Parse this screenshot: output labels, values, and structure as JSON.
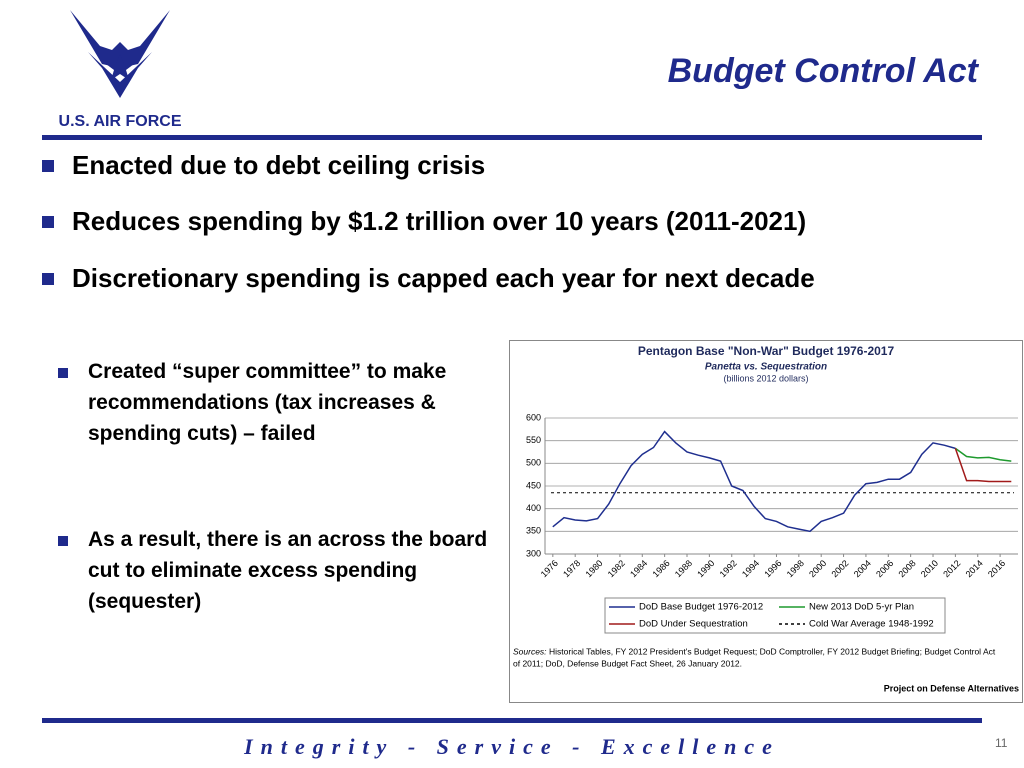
{
  "header": {
    "logo_text": "U.S. AIR FORCE",
    "title": "Budget Control Act"
  },
  "bullets": [
    "Enacted due to debt ceiling crisis",
    "Reduces spending by $1.2 trillion over 10 years (2011-2021)",
    "Discretionary spending is capped each year for next decade"
  ],
  "sub_bullets": [
    "Created “super committee” to make recommendations (tax increases & spending cuts) – failed",
    "As a result, there is an across the board cut to eliminate excess spending (sequester)"
  ],
  "chart_data": {
    "type": "line",
    "title": "Pentagon Base \"Non-War\" Budget 1976-2017",
    "subtitle": "Panetta vs. Sequestration",
    "y_label": "(billions 2012 dollars)",
    "x": [
      1976,
      1977,
      1978,
      1979,
      1980,
      1981,
      1982,
      1983,
      1984,
      1985,
      1986,
      1987,
      1988,
      1989,
      1990,
      1991,
      1992,
      1993,
      1994,
      1995,
      1996,
      1997,
      1998,
      1999,
      2000,
      2001,
      2002,
      2003,
      2004,
      2005,
      2006,
      2007,
      2008,
      2009,
      2010,
      2011,
      2012,
      2013,
      2014,
      2015,
      2016,
      2017
    ],
    "series": [
      {
        "name": "DoD Base Budget 1976-2012",
        "color": "#1f2f8f",
        "values": [
          360,
          380,
          375,
          373,
          378,
          410,
          455,
          495,
          520,
          535,
          570,
          545,
          525,
          518,
          512,
          505,
          450,
          440,
          405,
          378,
          372,
          360,
          355,
          350,
          372,
          380,
          390,
          430,
          455,
          458,
          465,
          465,
          480,
          520,
          545,
          540,
          533,
          null,
          null,
          null,
          null,
          null
        ]
      },
      {
        "name": "New 2013 DoD 5-yr Plan",
        "color": "#1e9a2e",
        "values": [
          null,
          null,
          null,
          null,
          null,
          null,
          null,
          null,
          null,
          null,
          null,
          null,
          null,
          null,
          null,
          null,
          null,
          null,
          null,
          null,
          null,
          null,
          null,
          null,
          null,
          null,
          null,
          null,
          null,
          null,
          null,
          null,
          null,
          null,
          null,
          null,
          533,
          515,
          512,
          513,
          508,
          505
        ]
      },
      {
        "name": "DoD Under Sequestration",
        "color": "#a11a1a",
        "values": [
          null,
          null,
          null,
          null,
          null,
          null,
          null,
          null,
          null,
          null,
          null,
          null,
          null,
          null,
          null,
          null,
          null,
          null,
          null,
          null,
          null,
          null,
          null,
          null,
          null,
          null,
          null,
          null,
          null,
          null,
          null,
          null,
          null,
          null,
          null,
          null,
          533,
          462,
          462,
          460,
          460,
          460
        ]
      }
    ],
    "reference_lines": [
      {
        "name": "Cold War Average 1948-1992",
        "value": 435,
        "color": "#000000"
      }
    ],
    "xlim": [
      1975.3,
      2017.6
    ],
    "ylim": [
      300,
      600
    ],
    "xticks": [
      1976,
      1978,
      1980,
      1982,
      1984,
      1986,
      1988,
      1990,
      1992,
      1994,
      1996,
      1998,
      2000,
      2002,
      2004,
      2006,
      2008,
      2010,
      2012,
      2014,
      2016
    ],
    "yticks": [
      300,
      350,
      400,
      450,
      500,
      550,
      600
    ],
    "grid": true,
    "sources_label": "Sources:",
    "sources": [
      "Historical Tables, FY 2012 President's Budget Request; DoD Comptroller, FY 2012  Budget Briefing; Budget Control Act",
      "of 2011; DoD, Defense Budget Fact Sheet, 26 January 2012."
    ],
    "credit": "Project on Defense Alternatives"
  },
  "footer": {
    "motto": "Integrity - Service - Excellence",
    "page_number": "11"
  }
}
